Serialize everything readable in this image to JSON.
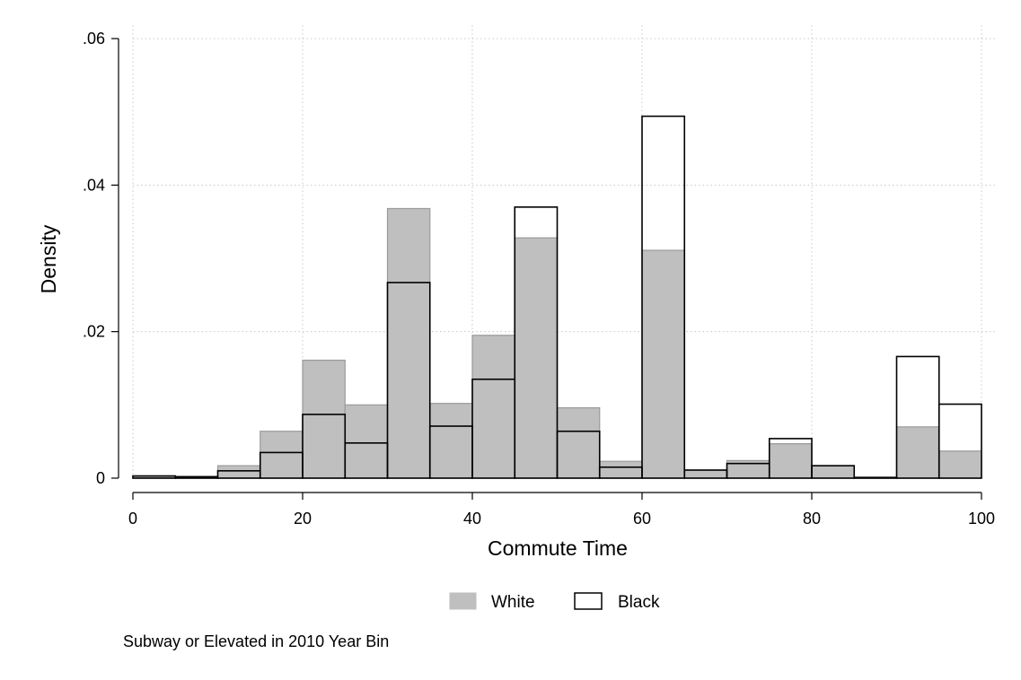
{
  "chart_data": {
    "type": "bar",
    "xlabel": "Commute Time",
    "ylabel": "Density",
    "xlim": [
      0,
      100
    ],
    "ylim": [
      0,
      0.06
    ],
    "x_ticks": [
      {
        "value": 0,
        "label": "0"
      },
      {
        "value": 20,
        "label": "20"
      },
      {
        "value": 40,
        "label": "40"
      },
      {
        "value": 60,
        "label": "60"
      },
      {
        "value": 80,
        "label": "80"
      },
      {
        "value": 100,
        "label": "100"
      }
    ],
    "y_ticks": [
      {
        "value": 0,
        "label": "0"
      },
      {
        "value": 0.02,
        "label": ".02"
      },
      {
        "value": 0.04,
        "label": ".04"
      },
      {
        "value": 0.06,
        "label": ".06"
      }
    ],
    "grid": true,
    "bin_width": 5,
    "bin_starts": [
      0,
      5,
      10,
      15,
      20,
      25,
      30,
      35,
      40,
      45,
      50,
      55,
      60,
      65,
      70,
      75,
      80,
      85,
      90,
      95
    ],
    "series": [
      {
        "name": "White",
        "style": "filled",
        "fill": "#bfbfbf",
        "stroke": "#9a9a9a",
        "values": [
          0.0003,
          0.0002,
          0.0017,
          0.0064,
          0.0161,
          0.01,
          0.0368,
          0.0102,
          0.0195,
          0.0328,
          0.0096,
          0.0023,
          0.0311,
          0.0011,
          0.0024,
          0.0047,
          0.0017,
          0.0001,
          0.007,
          0.0037
        ]
      },
      {
        "name": "Black",
        "style": "outline",
        "fill": "none",
        "stroke": "#000000",
        "values": [
          0.0003,
          0.0002,
          0.001,
          0.0035,
          0.0087,
          0.0048,
          0.0267,
          0.0071,
          0.0135,
          0.037,
          0.0064,
          0.0015,
          0.0494,
          0.0011,
          0.002,
          0.0054,
          0.0017,
          0.0001,
          0.0166,
          0.0101
        ]
      }
    ],
    "legend_position": "bottom",
    "note": "Subway or Elevated in 2010 Year Bin"
  }
}
